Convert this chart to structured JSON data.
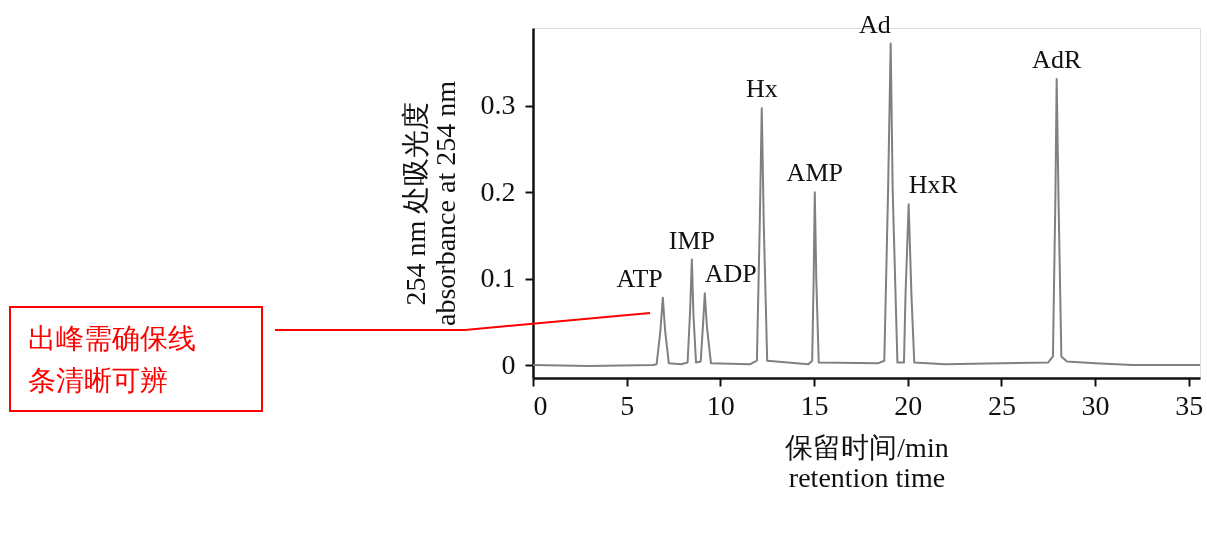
{
  "chart_data": {
    "type": "line",
    "xlabel": "保留时间/min\nretention time",
    "ylabel": "254 nm 处吸光度\nabsorbance at 254 nm",
    "xlim": [
      0,
      35.6
    ],
    "xticks": [
      0,
      5,
      10,
      15,
      20,
      25,
      30,
      35
    ],
    "ylim": [
      -0.015,
      0.39
    ],
    "yticks": [
      0,
      0.1,
      0.2,
      0.3
    ],
    "grid": false,
    "marker": "none",
    "line_style": "solid",
    "series": [
      {
        "color": "#808080",
        "x": [
          0,
          3,
          6.4,
          6.6,
          6.8,
          6.93,
          7.05,
          7.25,
          7.9,
          8.25,
          8.38,
          8.48,
          8.56,
          8.7,
          8.95,
          9.07,
          9.17,
          9.28,
          9.5,
          11.6,
          11.95,
          12.1,
          12.21,
          12.32,
          12.5,
          14.7,
          14.9,
          14.98,
          15.04,
          15.12,
          15.25,
          18.4,
          18.75,
          18.95,
          19.09,
          19.2,
          19.45,
          19.8,
          19.88,
          20.05,
          20.2,
          20.35,
          22,
          25,
          27.5,
          27.75,
          27.88,
          27.95,
          28.05,
          28.2,
          28.5,
          30,
          32,
          35.6
        ],
        "values": [
          0,
          -0.001,
          0,
          0.001,
          0.04,
          0.078,
          0.04,
          0.002,
          0.001,
          0.003,
          0.06,
          0.122,
          0.06,
          0.003,
          0.004,
          0.045,
          0.083,
          0.045,
          0.002,
          0.001,
          0.005,
          0.16,
          0.297,
          0.16,
          0.005,
          0.001,
          0.005,
          0.1,
          0.2,
          0.1,
          0.003,
          0.002,
          0.005,
          0.2,
          0.372,
          0.2,
          0.003,
          0.003,
          0.08,
          0.186,
          0.08,
          0.003,
          0.001,
          0.002,
          0.003,
          0.01,
          0.19,
          0.331,
          0.19,
          0.01,
          0.004,
          0.002,
          0,
          0
        ]
      }
    ],
    "annotations": [
      "出峰需确保线条清晰可辨",
      {
        "text": "ATP",
        "x": 6.93,
        "y": 0.078
      },
      {
        "text": "IMP",
        "x": 8.48,
        "y": 0.122
      },
      {
        "text": "ADP",
        "x": 9.17,
        "y": 0.083
      },
      {
        "text": "Hx",
        "x": 12.21,
        "y": 0.297
      },
      {
        "text": "AMP",
        "x": 15.04,
        "y": 0.2
      },
      {
        "text": "Ad",
        "x": 19.09,
        "y": 0.372
      },
      {
        "text": "HxR",
        "x": 20.05,
        "y": 0.186
      },
      {
        "text": "AdR",
        "x": 27.95,
        "y": 0.331
      }
    ]
  }
}
